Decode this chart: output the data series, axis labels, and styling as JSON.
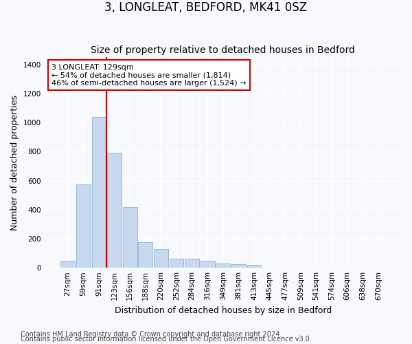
{
  "title": "3, LONGLEAT, BEDFORD, MK41 0SZ",
  "subtitle": "Size of property relative to detached houses in Bedford",
  "xlabel": "Distribution of detached houses by size in Bedford",
  "ylabel": "Number of detached properties",
  "categories": [
    "27sqm",
    "59sqm",
    "91sqm",
    "123sqm",
    "156sqm",
    "188sqm",
    "220sqm",
    "252sqm",
    "284sqm",
    "316sqm",
    "349sqm",
    "381sqm",
    "413sqm",
    "445sqm",
    "477sqm",
    "509sqm",
    "541sqm",
    "574sqm",
    "606sqm",
    "638sqm",
    "670sqm"
  ],
  "values": [
    48,
    575,
    1040,
    795,
    420,
    178,
    128,
    62,
    62,
    48,
    30,
    25,
    18,
    0,
    0,
    0,
    0,
    0,
    0,
    0,
    0
  ],
  "bar_color": "#c8d8ee",
  "bar_edge_color": "#8cb4d8",
  "vline_x_idx": 3,
  "vline_color": "#cc0000",
  "annotation_text": "3 LONGLEAT: 129sqm\n← 54% of detached houses are smaller (1,814)\n46% of semi-detached houses are larger (1,524) →",
  "annotation_box_facecolor": "#ffffff",
  "annotation_box_edgecolor": "#cc0000",
  "ylim": [
    0,
    1450
  ],
  "yticks": [
    0,
    200,
    400,
    600,
    800,
    1000,
    1200,
    1400
  ],
  "footer1": "Contains HM Land Registry data © Crown copyright and database right 2024.",
  "footer2": "Contains public sector information licensed under the Open Government Licence v3.0.",
  "fig_bg_color": "#f7f9fd",
  "plot_bg_color": "#f7f9fd",
  "grid_color": "#ffffff",
  "title_fontsize": 12,
  "subtitle_fontsize": 10,
  "axis_label_fontsize": 9,
  "tick_fontsize": 7.5,
  "annotation_fontsize": 8,
  "footer_fontsize": 7
}
